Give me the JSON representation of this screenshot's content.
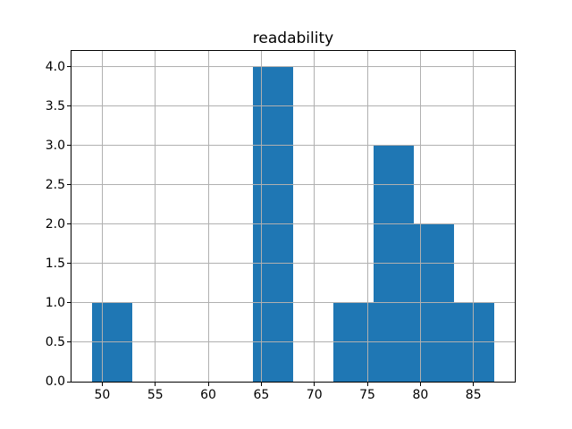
{
  "chart_data": {
    "type": "bar",
    "subtype": "histogram",
    "title": "readability",
    "bin_edges": [
      49.0,
      52.8,
      56.6,
      60.4,
      64.2,
      68.0,
      71.8,
      75.6,
      79.4,
      83.2,
      87.0
    ],
    "counts": [
      1,
      0,
      0,
      0,
      4,
      0,
      1,
      3,
      2,
      1
    ],
    "x_ticks": [
      50,
      55,
      60,
      65,
      70,
      75,
      80,
      85
    ],
    "x_tick_labels": [
      "50",
      "55",
      "60",
      "65",
      "70",
      "75",
      "80",
      "85"
    ],
    "y_ticks": [
      0.0,
      0.5,
      1.0,
      1.5,
      2.0,
      2.5,
      3.0,
      3.5,
      4.0
    ],
    "y_tick_labels": [
      "0.0",
      "0.5",
      "1.0",
      "1.5",
      "2.0",
      "2.5",
      "3.0",
      "3.5",
      "4.0"
    ],
    "xlim": [
      47.1,
      88.9
    ],
    "ylim": [
      0,
      4.2
    ],
    "grid": true,
    "grid_above_bars": true,
    "bar_color": "#1f77b4",
    "grid_color": "#b0b0b0",
    "axes_edge_color": "#000000",
    "background_color": "#ffffff",
    "legend": null
  }
}
